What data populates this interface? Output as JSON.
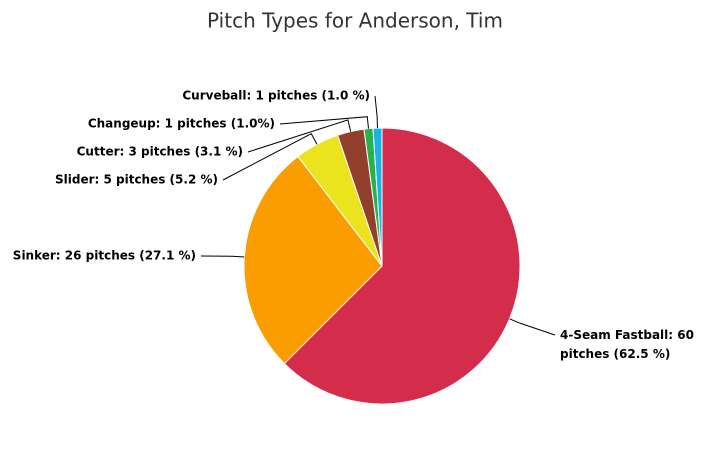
{
  "chart_data": {
    "type": "pie",
    "title": "Pitch Types for Anderson, Tim",
    "values": [
      60,
      26,
      5,
      3,
      1,
      1
    ],
    "value_labels": [
      "4-Seam Fastball: 60 pitches (62.5 %)",
      "Sinker: 26 pitches (27.1 %)",
      "Slider: 5 pitches (5.2 %)",
      "Cutter: 3 pitches (3.1 %)",
      "Changeup: 1 pitches (1.0%)",
      "Curveball: 1 pitches (1.0 %)"
    ],
    "colors": [
      "#d42d4b",
      "#fa9d00",
      "#ebe31e",
      "#923f2b",
      "#27b34a",
      "#19b3e6"
    ]
  }
}
